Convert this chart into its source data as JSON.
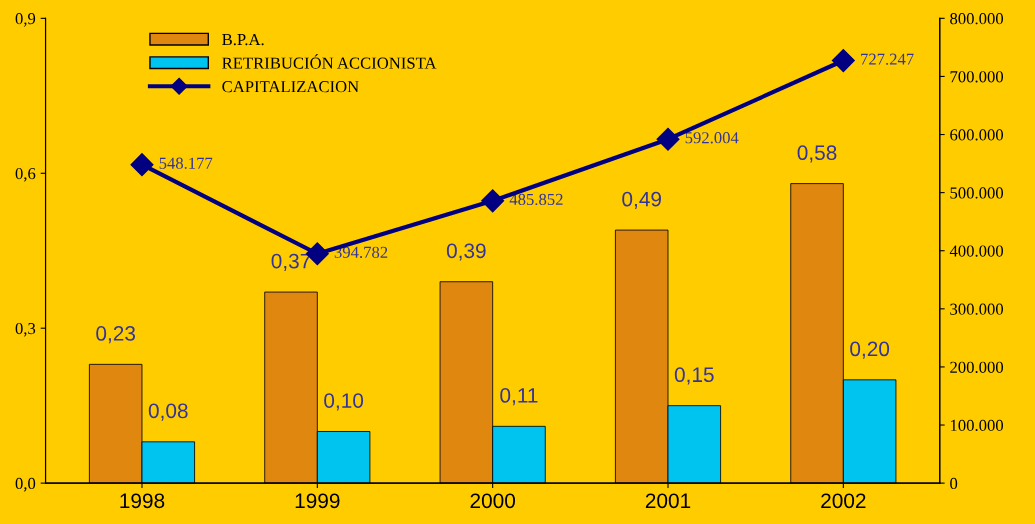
{
  "chart_data": {
    "type": "bar",
    "categories": [
      "1998",
      "1999",
      "2000",
      "2001",
      "2002"
    ],
    "series": [
      {
        "name": "B.P.A.",
        "color": "#e0870f",
        "values": [
          0.23,
          0.37,
          0.39,
          0.49,
          0.58
        ],
        "value_labels": [
          "0,23",
          "0,37",
          "0,39",
          "0,49",
          "0,58"
        ]
      },
      {
        "name": "RETRIBUCIÓN ACCIONISTA",
        "color": "#00c4f0",
        "values": [
          0.08,
          0.1,
          0.11,
          0.15,
          0.2
        ],
        "value_labels": [
          "0,08",
          "0,10",
          "0,11",
          "0,15",
          "0,20"
        ]
      },
      {
        "name": "CAPITALIZACION",
        "type": "line",
        "axis": "y2",
        "color": "#000080",
        "values": [
          548177,
          394782,
          485852,
          592004,
          727247
        ],
        "value_labels": [
          "548.177",
          "394.782",
          "485.852",
          "592.004",
          "727.247"
        ]
      }
    ],
    "ylim": [
      0,
      0.9
    ],
    "yticks": [
      {
        "value": 0,
        "label": "0,0"
      },
      {
        "value": 0.3,
        "label": "0,3"
      },
      {
        "value": 0.6,
        "label": "0,6"
      },
      {
        "value": 0.9,
        "label": "0,9"
      }
    ],
    "y2lim": [
      0,
      800000
    ],
    "y2ticks": [
      0,
      {
        "value": 100000,
        "label": "100.000"
      },
      {
        "value": 200000,
        "label": "200.000"
      },
      {
        "value": 300000,
        "label": "300.000"
      },
      {
        "value": 400000,
        "label": "400.000"
      },
      {
        "value": 500000,
        "label": "500.000"
      },
      {
        "value": 600000,
        "label": "600.000"
      },
      {
        "value": 700000,
        "label": "700.000"
      },
      {
        "value": 800000,
        "label": "800.000"
      }
    ],
    "marker": "diamond",
    "line_style": "solid",
    "grid": false,
    "legend": "top left"
  }
}
